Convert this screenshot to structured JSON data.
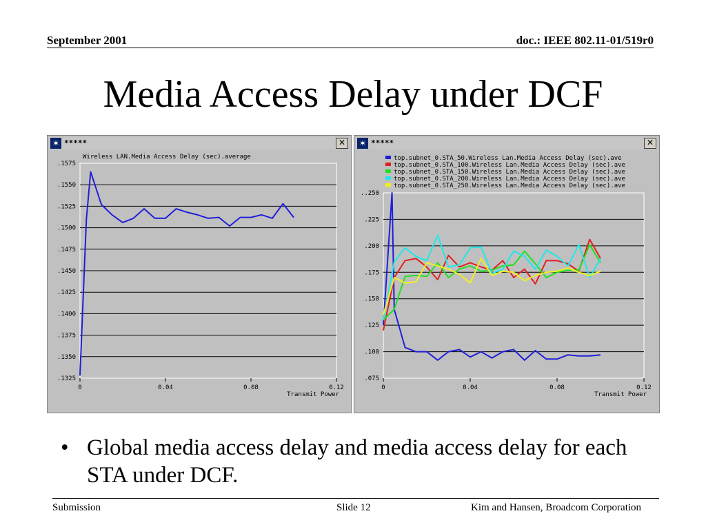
{
  "header": {
    "date": "September 2001",
    "doc": "doc.: IEEE 802.11-01/519r0"
  },
  "title": "Media Access Delay under DCF",
  "windows": [
    {
      "title": "*****",
      "close": "✕"
    },
    {
      "title": "*****",
      "close": "✕"
    }
  ],
  "chart_data": [
    {
      "type": "line",
      "title": "Wireless LAN.Media Access Delay (sec).average",
      "xlabel": "Transmit Power",
      "xlim": [
        0,
        0.12
      ],
      "ylim": [
        0.1325,
        0.1575
      ],
      "xticks": [
        "0",
        "0.04",
        "0.08",
        "0.12"
      ],
      "yticks": [
        ".1575",
        ".1550",
        ".1525",
        ".1500",
        ".1475",
        ".1450",
        ".1425",
        ".1400",
        ".1375",
        ".1350",
        ".1325"
      ],
      "grid": true,
      "colors": [
        "#1f1fd8"
      ],
      "series": [
        {
          "color": "#1f1fd8",
          "x": [
            0,
            0.003,
            0.005,
            0.01,
            0.015,
            0.02,
            0.025,
            0.03,
            0.035,
            0.04,
            0.045,
            0.05,
            0.055,
            0.06,
            0.065,
            0.07,
            0.075,
            0.08,
            0.085,
            0.09,
            0.095,
            0.1
          ],
          "y": [
            0.1328,
            0.151,
            0.1565,
            0.1527,
            0.1515,
            0.1506,
            0.1511,
            0.1522,
            0.1511,
            0.1511,
            0.1522,
            0.1518,
            0.1515,
            0.1511,
            0.1512,
            0.1502,
            0.1512,
            0.1512,
            0.1515,
            0.1511,
            0.1528,
            0.1512
          ]
        }
      ]
    },
    {
      "type": "line",
      "xlabel": "Transmit Power",
      "xlim": [
        0,
        0.12
      ],
      "ylim": [
        0.075,
        0.25
      ],
      "xticks": [
        "0",
        "0.04",
        "0.08",
        "0.12"
      ],
      "yticks": [
        "..250",
        ".225",
        ".200",
        ".175",
        ".150",
        ".125",
        ".100",
        ".075"
      ],
      "grid": true,
      "legend_position": "top",
      "series": [
        {
          "name": "top.subnet_0.STA_50.Wireless Lan.Media Access Delay (sec).ave",
          "color": "#1f1fd8",
          "x": [
            0,
            0.004,
            0.005,
            0.01,
            0.015,
            0.02,
            0.025,
            0.03,
            0.035,
            0.04,
            0.045,
            0.05,
            0.055,
            0.06,
            0.065,
            0.07,
            0.075,
            0.08,
            0.085,
            0.09,
            0.095,
            0.1
          ],
          "y": [
            0.125,
            0.25,
            0.14,
            0.104,
            0.1,
            0.1,
            0.092,
            0.1,
            0.102,
            0.095,
            0.1,
            0.094,
            0.1,
            0.102,
            0.092,
            0.101,
            0.093,
            0.093,
            0.097,
            0.096,
            0.096,
            0.097
          ]
        },
        {
          "name": "top.subnet_0.STA_100.Wireless Lan.Media Access Delay (sec).ave",
          "color": "#e02020",
          "x": [
            0,
            0.005,
            0.01,
            0.015,
            0.02,
            0.025,
            0.03,
            0.035,
            0.04,
            0.045,
            0.05,
            0.055,
            0.06,
            0.065,
            0.07,
            0.075,
            0.08,
            0.085,
            0.09,
            0.095,
            0.1
          ],
          "y": [
            0.12,
            0.17,
            0.186,
            0.188,
            0.18,
            0.168,
            0.191,
            0.18,
            0.184,
            0.18,
            0.177,
            0.186,
            0.17,
            0.178,
            0.164,
            0.186,
            0.186,
            0.183,
            0.176,
            0.206,
            0.188
          ]
        },
        {
          "name": "top.subnet_0.STA_150.Wireless Lan.Media Access Delay (sec).ave",
          "color": "#20e020",
          "x": [
            0,
            0.005,
            0.01,
            0.015,
            0.02,
            0.025,
            0.03,
            0.035,
            0.04,
            0.045,
            0.05,
            0.055,
            0.06,
            0.065,
            0.07,
            0.075,
            0.08,
            0.085,
            0.09,
            0.095,
            0.1
          ],
          "y": [
            0.13,
            0.14,
            0.171,
            0.172,
            0.171,
            0.184,
            0.17,
            0.178,
            0.181,
            0.176,
            0.177,
            0.181,
            0.182,
            0.195,
            0.183,
            0.17,
            0.175,
            0.177,
            0.177,
            0.201,
            0.184
          ]
        },
        {
          "name": "top.subnet_0.STA_200.Wireless Lan.Media Access Delay (sec).ave",
          "color": "#20e8e8",
          "x": [
            0,
            0.005,
            0.01,
            0.015,
            0.02,
            0.025,
            0.03,
            0.035,
            0.04,
            0.045,
            0.05,
            0.055,
            0.06,
            0.065,
            0.07,
            0.075,
            0.08,
            0.085,
            0.09,
            0.095,
            0.1
          ],
          "y": [
            0.13,
            0.185,
            0.198,
            0.19,
            0.186,
            0.21,
            0.18,
            0.182,
            0.198,
            0.199,
            0.174,
            0.178,
            0.195,
            0.19,
            0.178,
            0.196,
            0.19,
            0.181,
            0.201,
            0.17,
            0.188
          ]
        },
        {
          "name": "top.subnet_0.STA_250.Wireless Lan.Media Access Delay (sec).ave",
          "color": "#f0f020",
          "x": [
            0,
            0.005,
            0.01,
            0.015,
            0.02,
            0.025,
            0.03,
            0.035,
            0.04,
            0.045,
            0.05,
            0.055,
            0.06,
            0.065,
            0.07,
            0.075,
            0.08,
            0.085,
            0.09,
            0.095,
            0.1
          ],
          "y": [
            0.135,
            0.17,
            0.165,
            0.166,
            0.184,
            0.181,
            0.178,
            0.173,
            0.165,
            0.188,
            0.172,
            0.176,
            0.175,
            0.167,
            0.172,
            0.175,
            0.176,
            0.179,
            0.175,
            0.172,
            0.176
          ]
        }
      ]
    }
  ],
  "bullet": {
    "marker": "•",
    "text": "Global media access delay and media access delay for each STA under DCF."
  },
  "footer": {
    "left": "Submission",
    "center": "Slide 12",
    "right": "Kim and Hansen, Broadcom Corporation"
  }
}
